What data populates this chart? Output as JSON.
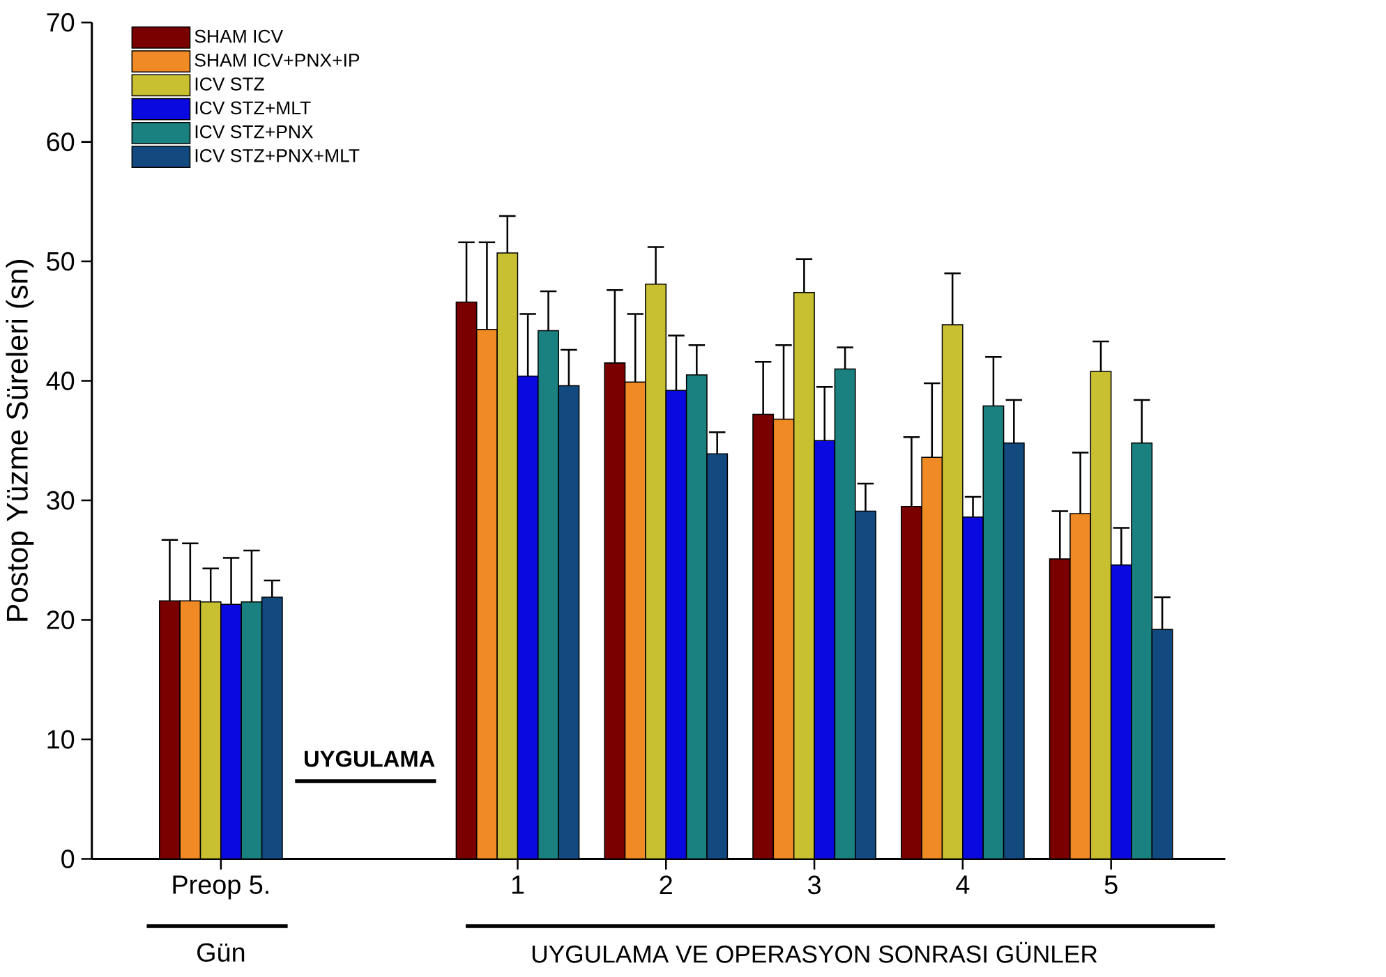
{
  "chart_data": {
    "type": "bar",
    "ylabel": "Postop Yüzme Süreleri (sn)",
    "categories": [
      "Preop 5.",
      null,
      "1",
      "2",
      "3",
      "4",
      "5"
    ],
    "series": [
      {
        "name": "SHAM ICV",
        "color": "#7a0000",
        "values": [
          21.6,
          null,
          46.6,
          41.5,
          37.2,
          29.5,
          25.1
        ],
        "errors": [
          [
            21.6,
            26.7
          ],
          null,
          [
            46.6,
            51.6
          ],
          [
            41.5,
            47.6
          ],
          [
            37.2,
            41.6
          ],
          [
            29.5,
            35.3
          ],
          [
            25.1,
            29.1
          ]
        ]
      },
      {
        "name": "SHAM ICV+PNX+IP",
        "color": "#f08a24",
        "values": [
          21.6,
          null,
          44.3,
          39.9,
          36.8,
          33.6,
          28.9
        ],
        "errors": [
          [
            21.6,
            26.4
          ],
          null,
          [
            44.3,
            51.6
          ],
          [
            39.9,
            45.6
          ],
          [
            36.8,
            43.0
          ],
          [
            33.6,
            39.8
          ],
          [
            28.9,
            34.0
          ]
        ]
      },
      {
        "name": "ICV STZ",
        "color": "#c8c030",
        "values": [
          21.5,
          null,
          50.7,
          48.1,
          47.4,
          44.7,
          40.8
        ],
        "errors": [
          [
            21.5,
            24.3
          ],
          null,
          [
            50.7,
            53.8
          ],
          [
            48.1,
            51.2
          ],
          [
            47.4,
            50.2
          ],
          [
            44.7,
            49.0
          ],
          [
            40.8,
            43.3
          ]
        ]
      },
      {
        "name": "ICV STZ+MLT",
        "color": "#0a0ae0",
        "values": [
          21.3,
          null,
          40.4,
          39.2,
          35.0,
          28.6,
          24.6
        ],
        "errors": [
          [
            21.3,
            25.2
          ],
          null,
          [
            40.4,
            45.6
          ],
          [
            39.2,
            43.8
          ],
          [
            35.0,
            39.5
          ],
          [
            28.6,
            30.3
          ],
          [
            24.6,
            27.7
          ]
        ]
      },
      {
        "name": "ICV STZ+PNX",
        "color": "#1a8080",
        "values": [
          21.5,
          null,
          44.2,
          40.5,
          41.0,
          37.9,
          34.8
        ],
        "errors": [
          [
            21.5,
            25.8
          ],
          null,
          [
            44.2,
            47.5
          ],
          [
            40.5,
            43.0
          ],
          [
            41.0,
            42.8
          ],
          [
            37.9,
            42.0
          ],
          [
            34.8,
            38.4
          ]
        ]
      },
      {
        "name": "ICV STZ+PNX+MLT",
        "color": "#124a80",
        "values": [
          21.9,
          null,
          39.6,
          33.9,
          29.1,
          34.8,
          19.2
        ],
        "errors": [
          [
            21.9,
            23.3
          ],
          null,
          [
            39.6,
            42.6
          ],
          [
            33.9,
            35.7
          ],
          [
            29.1,
            31.4
          ],
          [
            34.8,
            38.4
          ],
          [
            19.2,
            21.9
          ]
        ]
      }
    ],
    "ylim": [
      0,
      70
    ],
    "yticks": [
      0,
      10,
      20,
      30,
      40,
      50,
      60,
      70
    ],
    "legend": "top left",
    "grid": false,
    "annotations": [
      "UYGULAMA",
      "Gün",
      "UYGULAMA VE OPERASYON SONRASI GÜNLER"
    ]
  }
}
